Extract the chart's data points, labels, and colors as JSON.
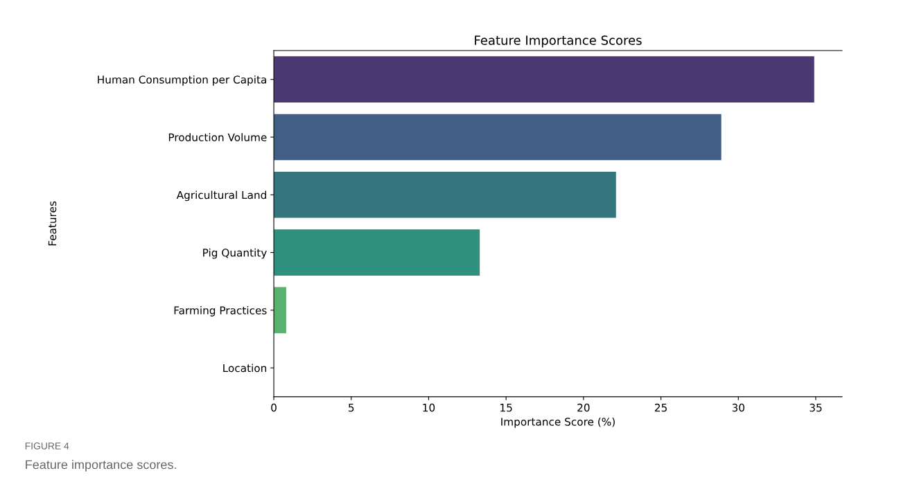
{
  "chart_data": {
    "type": "bar",
    "orientation": "horizontal",
    "title": "Feature Importance Scores",
    "xlabel": "Importance Score (%)",
    "ylabel": "Features",
    "categories": [
      "Human Consumption per Capita",
      "Production Volume",
      "Agricultural Land",
      "Pig Quantity",
      "Farming Practices",
      "Location"
    ],
    "values": [
      34.9,
      28.9,
      22.1,
      13.3,
      0.8,
      0
    ],
    "colors": [
      "#4a3873",
      "#415e85",
      "#35767e",
      "#2f917d",
      "#5ab26e",
      "#8ac85a"
    ],
    "xlim": [
      0,
      36.7
    ],
    "xticks": [
      0,
      5,
      10,
      15,
      20,
      25,
      30,
      35
    ],
    "grid": false,
    "annotations": [
      "FIGURE 4",
      "Feature importance scores."
    ]
  }
}
